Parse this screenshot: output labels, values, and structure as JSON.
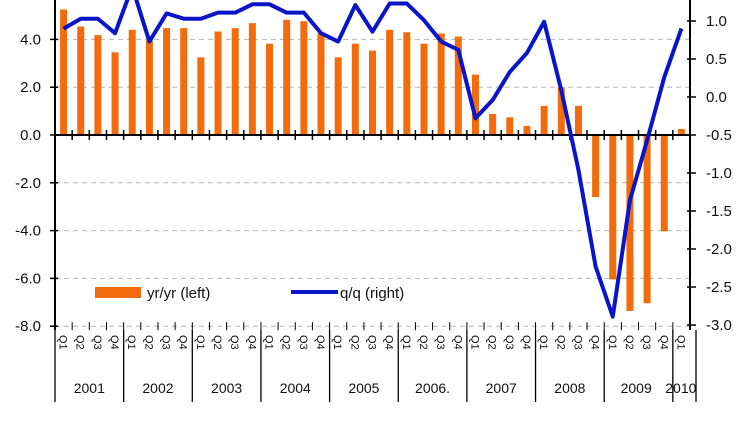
{
  "chart_data": {
    "type": "bar+line",
    "title": "",
    "grid": true,
    "legend_position": "bottom-left",
    "categories_quarters": [
      "Q1",
      "Q2",
      "Q3",
      "Q4"
    ],
    "years": [
      "2001",
      "2002",
      "2003",
      "2004",
      "2005",
      "2006.",
      "2007",
      "2008",
      "2009",
      "2010"
    ],
    "left_axis": {
      "ylim": [
        -8,
        6
      ],
      "ticks": [
        "4.0",
        "2.0",
        "0.0",
        "-2.0",
        "-4.0",
        "-6.0",
        "-8.0"
      ],
      "tick_values": [
        4,
        2,
        0,
        -2,
        -4,
        -6,
        -8
      ]
    },
    "right_axis": {
      "ylim": [
        -3.0,
        1.5
      ],
      "ticks": [
        "1.0",
        "0.5",
        "0.0",
        "-0.5",
        "-1.0",
        "-1.5",
        "-2.0",
        "-2.5",
        "-3.0"
      ],
      "tick_values": [
        1,
        0.5,
        0,
        -0.5,
        -1,
        -1.5,
        -2,
        -2.5,
        -3
      ]
    },
    "series": [
      {
        "name": "yr/yr (left)",
        "type": "bar",
        "axis": "left",
        "color": "#f26c0d",
        "values": [
          5.25,
          4.54,
          4.18,
          3.46,
          4.4,
          3.96,
          4.47,
          4.47,
          3.25,
          4.33,
          4.47,
          4.68,
          3.82,
          4.82,
          4.76,
          4.25,
          3.25,
          3.82,
          3.53,
          4.4,
          4.3,
          3.82,
          4.25,
          4.12,
          2.53,
          0.88,
          0.74,
          0.38,
          1.22,
          2.0,
          1.22,
          -2.6,
          -6.04,
          -7.36,
          -7.04,
          -4.03,
          0.25
        ]
      },
      {
        "name": "q/q (right)",
        "type": "line",
        "axis": "right",
        "color": "#0a14c8",
        "values": [
          0.9,
          1.03,
          1.03,
          0.84,
          1.45,
          0.73,
          1.1,
          1.03,
          1.03,
          1.11,
          1.11,
          1.22,
          1.22,
          1.11,
          1.11,
          0.84,
          0.73,
          1.21,
          0.86,
          1.23,
          1.23,
          1.01,
          0.73,
          0.62,
          -0.28,
          -0.04,
          0.33,
          0.58,
          0.99,
          0.09,
          -0.96,
          -2.23,
          -2.89,
          -1.36,
          -0.57,
          0.26,
          0.9
        ]
      }
    ]
  }
}
